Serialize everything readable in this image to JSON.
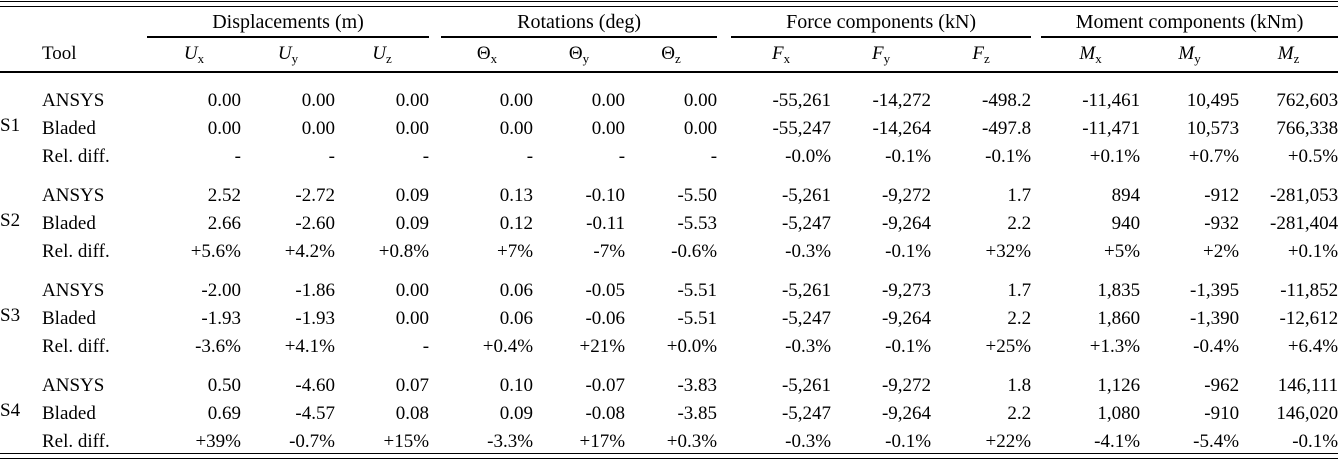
{
  "page": {
    "background": "#ffffff",
    "text_color": "#000000"
  },
  "table": {
    "tool_header": "Tool",
    "column_groups": [
      {
        "label": "Displacements (m)",
        "columns": [
          {
            "base": "U",
            "sub": "x",
            "italic": true
          },
          {
            "base": "U",
            "sub": "y",
            "italic": true
          },
          {
            "base": "U",
            "sub": "z",
            "italic": true
          }
        ]
      },
      {
        "label": "Rotations (deg)",
        "columns": [
          {
            "base": "Θ",
            "sub": "x",
            "italic": false
          },
          {
            "base": "Θ",
            "sub": "y",
            "italic": false
          },
          {
            "base": "Θ",
            "sub": "z",
            "italic": false
          }
        ]
      },
      {
        "label": "Force components (kN)",
        "columns": [
          {
            "base": "F",
            "sub": "x",
            "italic": true
          },
          {
            "base": "F",
            "sub": "y",
            "italic": true
          },
          {
            "base": "F",
            "sub": "z",
            "italic": true
          }
        ]
      },
      {
        "label": "Moment components (kNm)",
        "columns": [
          {
            "base": "M",
            "sub": "x",
            "italic": true
          },
          {
            "base": "M",
            "sub": "y",
            "italic": true
          },
          {
            "base": "M",
            "sub": "z",
            "italic": true
          }
        ]
      }
    ],
    "sections": [
      {
        "id": "S1",
        "rows": [
          {
            "tool": "ANSYS",
            "values": [
              "0.00",
              "0.00",
              "0.00",
              "0.00",
              "0.00",
              "0.00",
              "-55,261",
              "-14,272",
              "-498.2",
              "-11,461",
              "10,495",
              "762,603"
            ]
          },
          {
            "tool": "Bladed",
            "values": [
              "0.00",
              "0.00",
              "0.00",
              "0.00",
              "0.00",
              "0.00",
              "-55,247",
              "-14,264",
              "-497.8",
              "-11,471",
              "10,573",
              "766,338"
            ]
          },
          {
            "tool": "Rel. diff.",
            "values": [
              "-",
              "-",
              "-",
              "-",
              "-",
              "-",
              "-0.0%",
              "-0.1%",
              "-0.1%",
              "+0.1%",
              "+0.7%",
              "+0.5%"
            ]
          }
        ]
      },
      {
        "id": "S2",
        "rows": [
          {
            "tool": "ANSYS",
            "values": [
              "2.52",
              "-2.72",
              "0.09",
              "0.13",
              "-0.10",
              "-5.50",
              "-5,261",
              "-9,272",
              "1.7",
              "894",
              "-912",
              "-281,053"
            ]
          },
          {
            "tool": "Bladed",
            "values": [
              "2.66",
              "-2.60",
              "0.09",
              "0.12",
              "-0.11",
              "-5.53",
              "-5,247",
              "-9,264",
              "2.2",
              "940",
              "-932",
              "-281,404"
            ]
          },
          {
            "tool": "Rel. diff.",
            "values": [
              "+5.6%",
              "+4.2%",
              "+0.8%",
              "+7%",
              "-7%",
              "-0.6%",
              "-0.3%",
              "-0.1%",
              "+32%",
              "+5%",
              "+2%",
              "+0.1%"
            ]
          }
        ]
      },
      {
        "id": "S3",
        "rows": [
          {
            "tool": "ANSYS",
            "values": [
              "-2.00",
              "-1.86",
              "0.00",
              "0.06",
              "-0.05",
              "-5.51",
              "-5,261",
              "-9,273",
              "1.7",
              "1,835",
              "-1,395",
              "-11,852"
            ]
          },
          {
            "tool": "Bladed",
            "values": [
              "-1.93",
              "-1.93",
              "0.00",
              "0.06",
              "-0.06",
              "-5.51",
              "-5,247",
              "-9,264",
              "2.2",
              "1,860",
              "-1,390",
              "-12,612"
            ]
          },
          {
            "tool": "Rel. diff.",
            "values": [
              "-3.6%",
              "+4.1%",
              "-",
              "+0.4%",
              "+21%",
              "+0.0%",
              "-0.3%",
              "-0.1%",
              "+25%",
              "+1.3%",
              "-0.4%",
              "+6.4%"
            ]
          }
        ]
      },
      {
        "id": "S4",
        "rows": [
          {
            "tool": "ANSYS",
            "values": [
              "0.50",
              "-4.60",
              "0.07",
              "0.10",
              "-0.07",
              "-3.83",
              "-5,261",
              "-9,272",
              "1.8",
              "1,126",
              "-962",
              "146,111"
            ]
          },
          {
            "tool": "Bladed",
            "values": [
              "0.69",
              "-4.57",
              "0.08",
              "0.09",
              "-0.08",
              "-3.85",
              "-5,247",
              "-9,264",
              "2.2",
              "1,080",
              "-910",
              "146,020"
            ]
          },
          {
            "tool": "Rel. diff.",
            "values": [
              "+39%",
              "-0.7%",
              "+15%",
              "-3.3%",
              "+17%",
              "+0.3%",
              "-0.3%",
              "-0.1%",
              "+22%",
              "-4.1%",
              "-5.4%",
              "-0.1%"
            ]
          }
        ]
      }
    ]
  }
}
